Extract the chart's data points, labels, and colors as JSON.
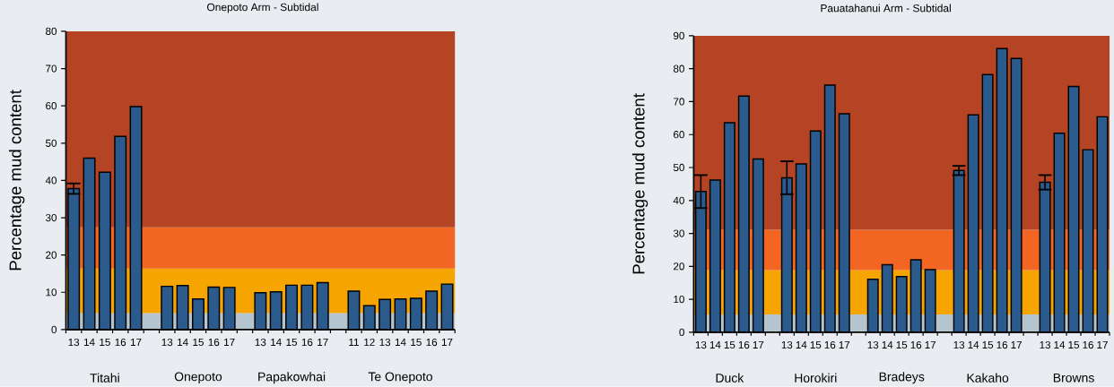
{
  "chart_data": [
    {
      "type": "bar",
      "title": "Onepoto Arm - Subtidal",
      "ylabel": "Percentage mud content",
      "categories": [
        "13",
        "14",
        "15",
        "16",
        "17",
        null,
        "13",
        "14",
        "15",
        "16",
        "17",
        null,
        "13",
        "14",
        "15",
        "16",
        "17",
        null,
        "11",
        "12",
        "13",
        "14",
        "15",
        "16",
        "17"
      ],
      "values": [
        37.8,
        46.0,
        42.2,
        51.8,
        59.8,
        null,
        11.6,
        11.8,
        8.2,
        11.4,
        11.3,
        null,
        9.9,
        10.1,
        11.9,
        11.9,
        12.6,
        null,
        10.3,
        6.4,
        8.1,
        8.2,
        8.4,
        10.3,
        12.2
      ],
      "errors": [
        1.4,
        null,
        null,
        null,
        null,
        null,
        null,
        null,
        null,
        null,
        null,
        null,
        null,
        null,
        null,
        null,
        null,
        null,
        null,
        null,
        null,
        null,
        null,
        null,
        null
      ],
      "color": "#2a5b8c",
      "ylim": [
        0,
        80
      ],
      "yticks": [
        0,
        10,
        20,
        30,
        40,
        50,
        60,
        70,
        80
      ],
      "bands": [
        {
          "axis": "y",
          "from": 0,
          "to": 4.4,
          "color": "#b5c5cf"
        },
        {
          "axis": "y",
          "from": 4.4,
          "to": 16.4,
          "color": "#f6a500"
        },
        {
          "axis": "y",
          "from": 16.4,
          "to": 27.4,
          "color": "#f26522"
        },
        {
          "axis": "y",
          "from": 27.4,
          "to": 80,
          "color": "#b54424"
        }
      ],
      "annotations": [
        "Titahi",
        "Onepoto",
        "Papakowhai",
        "Te Onepoto"
      ]
    },
    {
      "type": "bar",
      "title": "Pauatahanui Arm - Subtidal",
      "ylabel": "Percentage mud content",
      "categories": [
        "13",
        "14",
        "15",
        "16",
        "17",
        null,
        "13",
        "14",
        "15",
        "16",
        "17",
        null,
        "13",
        "14",
        "15",
        "16",
        "17",
        null,
        "13",
        "14",
        "15",
        "16",
        "17",
        null,
        "13",
        "14",
        "15",
        "16",
        "17"
      ],
      "values": [
        42.7,
        46.2,
        63.6,
        71.7,
        52.6,
        null,
        46.9,
        51.1,
        61.1,
        75.0,
        66.3,
        null,
        16.1,
        20.5,
        16.9,
        22.0,
        19.0,
        null,
        49.1,
        66.0,
        78.2,
        86.1,
        83.1,
        null,
        45.5,
        60.4,
        74.6,
        55.4,
        65.4
      ],
      "errors": [
        5.0,
        null,
        null,
        null,
        null,
        null,
        5.0,
        null,
        null,
        null,
        null,
        null,
        null,
        null,
        null,
        null,
        null,
        null,
        1.4,
        null,
        null,
        null,
        null,
        null,
        2.2,
        null,
        null,
        null,
        null
      ],
      "color": "#2a5b8c",
      "ylim": [
        0,
        90
      ],
      "yticks": [
        0,
        10,
        20,
        30,
        40,
        50,
        60,
        70,
        80,
        90
      ],
      "bands": [
        {
          "axis": "y",
          "from": 0,
          "to": 5.4,
          "color": "#b5c5cf"
        },
        {
          "axis": "y",
          "from": 5.4,
          "to": 18.9,
          "color": "#f6a500"
        },
        {
          "axis": "y",
          "from": 18.9,
          "to": 31.1,
          "color": "#f26522"
        },
        {
          "axis": "y",
          "from": 31.1,
          "to": 90,
          "color": "#b54424"
        }
      ],
      "annotations": [
        "Duck",
        "Horokiri",
        "Bradeys",
        "Kakaho",
        "Browns"
      ]
    }
  ]
}
